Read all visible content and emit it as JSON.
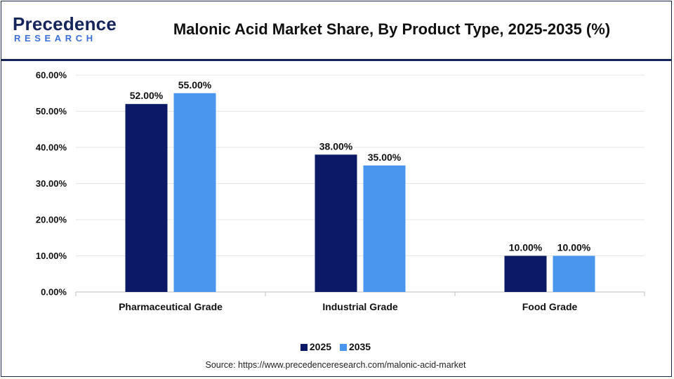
{
  "brand": {
    "name": "Precedence",
    "sub": "RESEARCH"
  },
  "title": "Malonic Acid Market Share, By Product Type, 2025-2035 (%)",
  "source": "Source: https://www.precedenceresearch.com/malonic-acid-market",
  "chart_data": {
    "type": "bar",
    "categories": [
      "Pharmaceutical Grade",
      "Industrial Grade",
      "Food Grade"
    ],
    "series": [
      {
        "name": "2025",
        "values": [
          52.0,
          38.0,
          10.0
        ],
        "labels": [
          "52.00%",
          "38.00%",
          "10.00%"
        ],
        "color": "#0b1966"
      },
      {
        "name": "2035",
        "values": [
          55.0,
          35.0,
          10.0
        ],
        "labels": [
          "55.00%",
          "35.00%",
          "10.00%"
        ],
        "color": "#4a95ee"
      }
    ],
    "yticks": [
      "0.00%",
      "10.00%",
      "20.00%",
      "30.00%",
      "40.00%",
      "50.00%",
      "60.00%"
    ],
    "ylim": [
      0,
      60
    ],
    "grid": true,
    "legend": "bottom-center"
  }
}
